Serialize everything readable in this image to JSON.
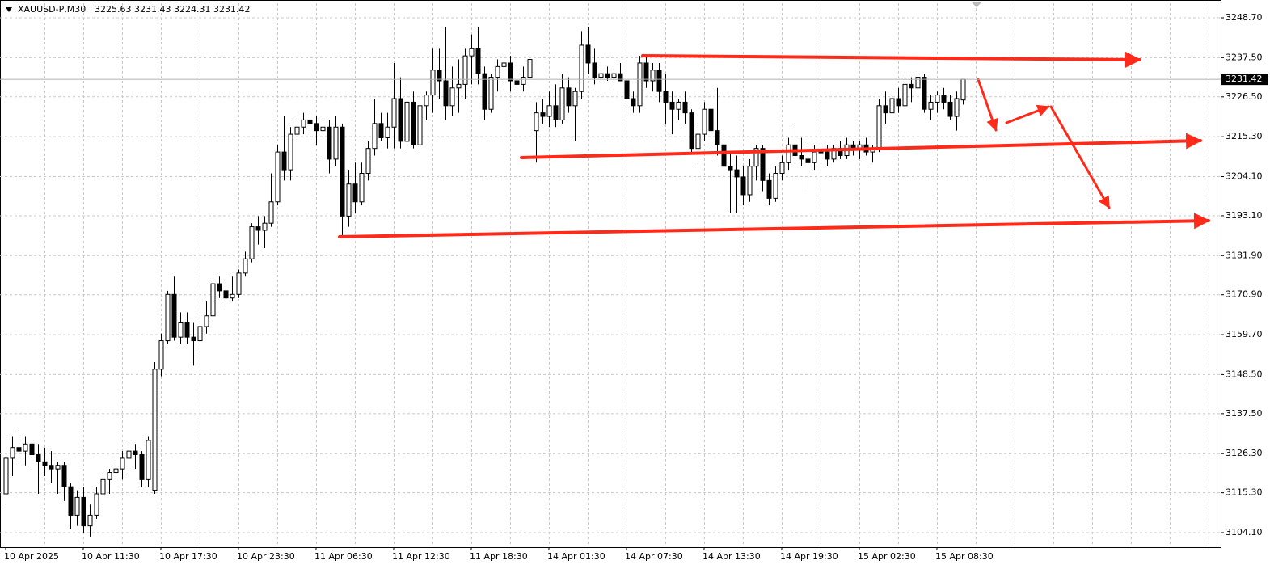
{
  "chart_data": {
    "type": "candlestick",
    "symbol": "XAUUSD-P,M30",
    "ylim": [
      3100.24,
      3252.79
    ],
    "yticks": [
      {
        "value": 3104.1,
        "label": "3104.10"
      },
      {
        "value": 3115.3,
        "label": "3115.30"
      },
      {
        "value": 3126.3,
        "label": "3126.30"
      },
      {
        "value": 3137.5,
        "label": "3137.50"
      },
      {
        "value": 3148.5,
        "label": "3148.50"
      },
      {
        "value": 3159.7,
        "label": "3159.70"
      },
      {
        "value": 3170.9,
        "label": "3170.90"
      },
      {
        "value": 3181.9,
        "label": "3181.90"
      },
      {
        "value": 3193.1,
        "label": "3193.10"
      },
      {
        "value": 3204.1,
        "label": "3204.10"
      },
      {
        "value": 3215.3,
        "label": "3215.30"
      },
      {
        "value": 3226.5,
        "label": "3226.50"
      },
      {
        "value": 3237.5,
        "label": "3237.50"
      },
      {
        "value": 3248.7,
        "label": "3248.70"
      }
    ],
    "grid": true,
    "up_color": "#ffffff",
    "down_color": "#000000",
    "categories": [
      "10 Apr 2025",
      null,
      null,
      null,
      null,
      null,
      null,
      null,
      null,
      null,
      null,
      null,
      "10 Apr 11:30",
      null,
      null,
      null,
      null,
      null,
      null,
      null,
      null,
      null,
      null,
      null,
      "10 Apr 17:30",
      null,
      null,
      null,
      null,
      null,
      null,
      null,
      null,
      null,
      null,
      null,
      "10 Apr 23:30",
      null,
      null,
      null,
      null,
      null,
      null,
      null,
      null,
      null,
      null,
      null,
      "11 Apr 06:30",
      null,
      null,
      null,
      null,
      null,
      null,
      null,
      null,
      null,
      null,
      null,
      "11 Apr 12:30",
      null,
      null,
      null,
      null,
      null,
      null,
      null,
      null,
      null,
      null,
      null,
      "11 Apr 18:30",
      null,
      null,
      null,
      null,
      null,
      null,
      null,
      null,
      null,
      null,
      null,
      "14 Apr 01:30",
      null,
      null,
      null,
      null,
      null,
      null,
      null,
      null,
      null,
      null,
      null,
      "14 Apr 07:30",
      null,
      null,
      null,
      null,
      null,
      null,
      null,
      null,
      null,
      null,
      null,
      "14 Apr 13:30",
      null,
      null,
      null,
      null,
      null,
      null,
      null,
      null,
      null,
      null,
      null,
      "14 Apr 19:30",
      null,
      null,
      null,
      null,
      null,
      null,
      null,
      null,
      null,
      null,
      null,
      "15 Apr 02:30",
      null,
      null,
      null,
      null,
      null,
      null,
      null,
      null,
      null,
      null,
      null,
      "15 Apr 08:30",
      null,
      null,
      null,
      null
    ],
    "candles": [
      [
        3115,
        3132,
        3112,
        3125
      ],
      [
        3125,
        3131,
        3120,
        3128
      ],
      [
        3128,
        3133,
        3124,
        3127
      ],
      [
        3127,
        3131,
        3123,
        3129
      ],
      [
        3129,
        3130,
        3122,
        3126
      ],
      [
        3126,
        3129,
        3115,
        3124
      ],
      [
        3124,
        3128,
        3120,
        3123
      ],
      [
        3123,
        3127,
        3118,
        3122
      ],
      [
        3122,
        3124,
        3115,
        3123
      ],
      [
        3123,
        3124,
        3113,
        3117
      ],
      [
        3117,
        3118,
        3105,
        3109
      ],
      [
        3109,
        3116,
        3106,
        3114
      ],
      [
        3114,
        3117,
        3104,
        3106
      ],
      [
        3106,
        3112,
        3103,
        3109
      ],
      [
        3109,
        3117,
        3108,
        3115
      ],
      [
        3115,
        3121,
        3112,
        3119
      ],
      [
        3119,
        3122,
        3115,
        3121
      ],
      [
        3121,
        3124,
        3118,
        3122
      ],
      [
        3122,
        3127,
        3119,
        3125
      ],
      [
        3125,
        3129,
        3121,
        3127
      ],
      [
        3127,
        3129,
        3122,
        3126
      ],
      [
        3126,
        3127,
        3117,
        3119
      ],
      [
        3119,
        3131,
        3117,
        3130
      ],
      [
        3116,
        3152,
        3115,
        3150
      ],
      [
        3150,
        3160,
        3148,
        3158
      ],
      [
        3158,
        3172,
        3157,
        3171
      ],
      [
        3171,
        3176,
        3158,
        3159
      ],
      [
        3159,
        3166,
        3157,
        3163
      ],
      [
        3163,
        3166,
        3157,
        3159
      ],
      [
        3159,
        3163,
        3151,
        3158
      ],
      [
        3158,
        3163,
        3156,
        3162
      ],
      [
        3162,
        3169,
        3160,
        3165
      ],
      [
        3165,
        3175,
        3164,
        3174
      ],
      [
        3174,
        3176,
        3170,
        3172
      ],
      [
        3172,
        3174,
        3168,
        3170
      ],
      [
        3170,
        3176,
        3169,
        3171
      ],
      [
        3171,
        3178,
        3170,
        3177
      ],
      [
        3177,
        3183,
        3176,
        3181
      ],
      [
        3181,
        3191,
        3180,
        3190
      ],
      [
        3190,
        3193,
        3185,
        3189
      ],
      [
        3189,
        3193,
        3184,
        3191
      ],
      [
        3191,
        3205,
        3190,
        3197
      ],
      [
        3197,
        3213,
        3196,
        3211
      ],
      [
        3211,
        3221,
        3203,
        3206
      ],
      [
        3206,
        3218,
        3203,
        3216
      ],
      [
        3216,
        3220,
        3214,
        3218
      ],
      [
        3218,
        3222,
        3216,
        3220
      ],
      [
        3220,
        3222,
        3217,
        3219
      ],
      [
        3219,
        3221,
        3213,
        3217
      ],
      [
        3217,
        3220,
        3210,
        3218
      ],
      [
        3218,
        3220,
        3205,
        3209
      ],
      [
        3209,
        3221,
        3207,
        3218
      ],
      [
        3218,
        3219,
        3187,
        3193
      ],
      [
        3193,
        3206,
        3190,
        3202
      ],
      [
        3202,
        3208,
        3194,
        3197
      ],
      [
        3197,
        3208,
        3196,
        3205
      ],
      [
        3205,
        3214,
        3203,
        3212
      ],
      [
        3212,
        3226,
        3210,
        3219
      ],
      [
        3219,
        3222,
        3214,
        3215
      ],
      [
        3215,
        3222,
        3212,
        3218
      ],
      [
        3218,
        3236,
        3212,
        3226
      ],
      [
        3226,
        3232,
        3212,
        3214
      ],
      [
        3214,
        3230,
        3211,
        3225
      ],
      [
        3225,
        3228,
        3212,
        3213
      ],
      [
        3213,
        3226,
        3211,
        3224
      ],
      [
        3224,
        3228,
        3220,
        3227
      ],
      [
        3227,
        3240,
        3222,
        3234
      ],
      [
        3234,
        3240,
        3226,
        3231
      ],
      [
        3231,
        3246,
        3220,
        3224
      ],
      [
        3224,
        3235,
        3221,
        3229
      ],
      [
        3229,
        3237,
        3222,
        3230
      ],
      [
        3230,
        3240,
        3226,
        3238
      ],
      [
        3238,
        3244,
        3230,
        3240
      ],
      [
        3240,
        3246,
        3230,
        3233
      ],
      [
        3233,
        3235,
        3220,
        3223
      ],
      [
        3223,
        3233,
        3222,
        3232
      ],
      [
        3232,
        3237,
        3228,
        3235
      ],
      [
        3235,
        3239,
        3230,
        3236
      ],
      [
        3236,
        3238,
        3228,
        3231
      ],
      [
        3231,
        3235,
        3228,
        3230
      ],
      [
        3230,
        3235,
        3228,
        3232
      ],
      [
        3232,
        3239,
        3231,
        3237
      ],
      [
        3217,
        3225,
        3208,
        3222
      ],
      [
        3222,
        3226,
        3219,
        3221
      ],
      [
        3221,
        3228,
        3218,
        3224
      ],
      [
        3224,
        3230,
        3218,
        3220
      ],
      [
        3220,
        3233,
        3219,
        3229
      ],
      [
        3229,
        3232,
        3222,
        3224
      ],
      [
        3224,
        3229,
        3214,
        3228
      ],
      [
        3228,
        3245,
        3226,
        3241
      ],
      [
        3241,
        3246,
        3233,
        3236
      ],
      [
        3236,
        3240,
        3230,
        3232
      ],
      [
        3232,
        3235,
        3227,
        3233
      ],
      [
        3233,
        3235,
        3231,
        3232
      ],
      [
        3232,
        3234,
        3230,
        3233
      ],
      [
        3233,
        3236,
        3231,
        3231
      ],
      [
        3231,
        3232,
        3224,
        3226
      ],
      [
        3226,
        3228,
        3222,
        3224
      ],
      [
        3224,
        3238,
        3222,
        3236
      ],
      [
        3236,
        3238,
        3229,
        3231
      ],
      [
        3231,
        3236,
        3228,
        3234
      ],
      [
        3234,
        3236,
        3225,
        3228
      ],
      [
        3228,
        3233,
        3219,
        3225
      ],
      [
        3225,
        3228,
        3216,
        3223
      ],
      [
        3223,
        3226,
        3220,
        3225
      ],
      [
        3225,
        3228,
        3219,
        3222
      ],
      [
        3222,
        3223,
        3211,
        3212
      ],
      [
        3212,
        3218,
        3208,
        3216
      ],
      [
        3216,
        3225,
        3214,
        3223
      ],
      [
        3223,
        3227,
        3212,
        3217
      ],
      [
        3217,
        3229,
        3210,
        3213
      ],
      [
        3213,
        3215,
        3204,
        3207
      ],
      [
        3207,
        3211,
        3194,
        3206
      ],
      [
        3206,
        3210,
        3194,
        3204
      ],
      [
        3204,
        3207,
        3196,
        3199
      ],
      [
        3199,
        3209,
        3197,
        3207
      ],
      [
        3207,
        3213,
        3203,
        3212
      ],
      [
        3212,
        3213,
        3200,
        3203
      ],
      [
        3203,
        3205,
        3196,
        3198
      ],
      [
        3198,
        3207,
        3197,
        3205
      ],
      [
        3205,
        3210,
        3203,
        3208
      ],
      [
        3208,
        3215,
        3206,
        3213
      ],
      [
        3213,
        3218,
        3208,
        3210
      ],
      [
        3210,
        3215,
        3207,
        3209
      ],
      [
        3209,
        3213,
        3201,
        3208
      ],
      [
        3208,
        3213,
        3206,
        3211
      ],
      [
        3211,
        3213,
        3208,
        3211
      ],
      [
        3211,
        3213,
        3207,
        3209
      ],
      [
        3209,
        3213,
        3208,
        3212
      ],
      [
        3212,
        3214,
        3209,
        3210
      ],
      [
        3210,
        3215,
        3209,
        3213
      ],
      [
        3213,
        3214,
        3210,
        3212
      ],
      [
        3212,
        3214,
        3209,
        3213
      ],
      [
        3213,
        3215,
        3210,
        3211
      ],
      [
        3211,
        3213,
        3208,
        3212
      ],
      [
        3212,
        3226,
        3211,
        3224
      ],
      [
        3224,
        3228,
        3219,
        3222
      ],
      [
        3222,
        3227,
        3218,
        3226
      ],
      [
        3226,
        3229,
        3222,
        3224
      ],
      [
        3224,
        3232,
        3223,
        3230
      ],
      [
        3230,
        3232,
        3225,
        3229
      ],
      [
        3229,
        3233,
        3227,
        3232
      ],
      [
        3232,
        3233,
        3222,
        3223
      ],
      [
        3223,
        3227,
        3220,
        3225
      ],
      [
        3225,
        3228,
        3222,
        3227
      ],
      [
        3227,
        3229,
        3223,
        3225
      ],
      [
        3225,
        3227,
        3220,
        3221
      ],
      [
        3221,
        3228,
        3217,
        3226
      ],
      [
        3225.63,
        3231.43,
        3224.31,
        3231.42
      ]
    ]
  }
}
